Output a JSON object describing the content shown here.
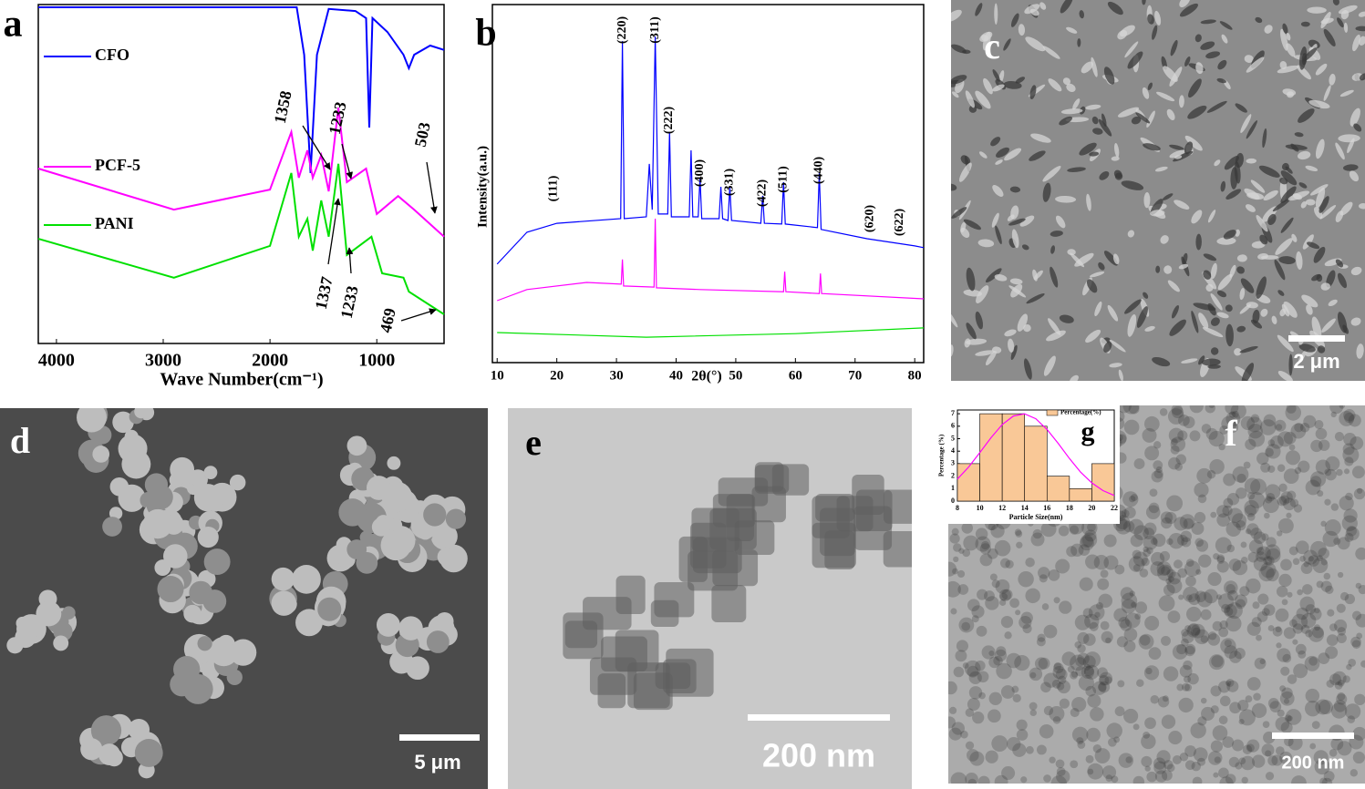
{
  "chart_data": [
    {
      "type": "line",
      "panel": "a",
      "xlabel": "Wave Number(cm⁻¹)",
      "xlim": [
        4170,
        370
      ],
      "xticks": [
        4000,
        3000,
        2000,
        1000
      ],
      "ylim": [
        0,
        100
      ],
      "series": [
        {
          "name": "CFO",
          "color": "#0000ff",
          "x": [
            4170,
            1750,
            1680,
            1620,
            1560,
            1450,
            1200,
            1100,
            1070,
            1040,
            900,
            750,
            700,
            650,
            500,
            370
          ],
          "values": [
            99.2,
            99.2,
            85.2,
            50.3,
            85.2,
            98.7,
            98.1,
            96.0,
            63.7,
            96.0,
            91.9,
            85.2,
            81.2,
            85.2,
            87.9,
            86.6
          ]
        },
        {
          "name": "PCF-5",
          "color": "#ff00ff",
          "x": [
            4170,
            2900,
            2000,
            1800,
            1730,
            1650,
            1600,
            1520,
            1450,
            1360,
            1280,
            1100,
            1000,
            800,
            650,
            370
          ],
          "values": [
            51.6,
            39.5,
            45.4,
            62.4,
            48.9,
            57.0,
            48.9,
            55.6,
            44.9,
            69.6,
            47.6,
            51.6,
            38.2,
            43.5,
            39.5,
            31.5
          ]
        },
        {
          "name": "PANI",
          "color": "#00e000",
          "x": [
            4170,
            2900,
            2000,
            1800,
            1730,
            1650,
            1600,
            1520,
            1450,
            1360,
            1280,
            1050,
            950,
            750,
            700,
            370
          ],
          "values": [
            30.9,
            19.4,
            28.8,
            50.3,
            31.5,
            36.8,
            27.4,
            42.2,
            31.5,
            53.0,
            26.1,
            31.5,
            20.7,
            19.4,
            15.3,
            8.6
          ]
        }
      ],
      "annotations": [
        "1358",
        "1233",
        "1337",
        "1233",
        "503",
        "469"
      ]
    },
    {
      "type": "line",
      "panel": "b",
      "xlabel": "2θ(°)",
      "ylabel": "Intensity(a.u.)",
      "xlim": [
        9.2,
        81.5
      ],
      "xticks": [
        10,
        20,
        30,
        40,
        50,
        60,
        70,
        80
      ],
      "ylim": [
        0,
        100
      ],
      "series": [
        {
          "color": "#0000ff",
          "x": [
            10,
            15,
            20,
            30.7,
            31,
            31.3,
            35,
            35.5,
            36,
            36.5,
            37,
            38.6,
            38.9,
            39.2,
            42.2,
            42.5,
            42.8,
            43.7,
            44,
            44.3,
            47.2,
            47.5,
            47.8,
            48.7,
            49,
            49.3,
            54.2,
            54.5,
            54.8,
            57.7,
            58,
            58.3,
            63.7,
            64,
            64.3,
            72,
            80,
            81.5
          ],
          "values": [
            27.5,
            36.4,
            38.9,
            40.2,
            89.8,
            40.2,
            40.7,
            55.5,
            42.7,
            91.1,
            41.5,
            41.5,
            64.4,
            40.7,
            40.7,
            59.3,
            40.7,
            40.7,
            51.7,
            40.2,
            40.2,
            49.1,
            40.2,
            39.7,
            49.1,
            39.7,
            38.9,
            46.6,
            38.9,
            38.7,
            50.4,
            38.7,
            37.7,
            52.9,
            37.2,
            34.6,
            32.6,
            32.1
          ]
        },
        {
          "color": "#ff00ff",
          "x": [
            10,
            15,
            25,
            30.8,
            31,
            31.2,
            36.3,
            36.5,
            36.7,
            44,
            58,
            58.2,
            58.4,
            64,
            64.2,
            64.4,
            81.5
          ],
          "values": [
            17.3,
            20.4,
            22.4,
            21.9,
            28.8,
            21.4,
            21.1,
            40.2,
            20.9,
            20.4,
            19.8,
            25.4,
            19.8,
            19.3,
            24.9,
            19.3,
            17.8
          ]
        },
        {
          "color": "#00e000",
          "x": [
            10,
            35,
            60,
            81.5
          ],
          "values": [
            8.4,
            7.1,
            8.1,
            9.7
          ]
        }
      ],
      "annotations": [
        {
          "x": 19.5,
          "text": "(111)"
        },
        {
          "x": 31,
          "text": "(220)"
        },
        {
          "x": 36.5,
          "text": "(311)"
        },
        {
          "x": 38.8,
          "text": "(222)"
        },
        {
          "x": 44,
          "text": "(400)"
        },
        {
          "x": 49,
          "text": "(331)"
        },
        {
          "x": 54.5,
          "text": "(422)"
        },
        {
          "x": 58,
          "text": "(511)"
        },
        {
          "x": 64,
          "text": "(440)"
        },
        {
          "x": 72.5,
          "text": "(620)"
        },
        {
          "x": 77.5,
          "text": "(622)"
        }
      ]
    },
    {
      "type": "histogram",
      "panel": "g",
      "xlabel": "Particle Size(nm)",
      "ylabel": "Percentage (%)",
      "bins": [
        8,
        10,
        12,
        14,
        16,
        18,
        20,
        22
      ],
      "series": [
        {
          "name": "Percentage(%)",
          "color": "#f9c897",
          "values": [
            3,
            7,
            7,
            6,
            2,
            1,
            3
          ]
        }
      ],
      "fit": {
        "color": "#ff00ff",
        "x": [
          8,
          9,
          10,
          11,
          12,
          13,
          14,
          15,
          16,
          17,
          18,
          19,
          20,
          21,
          22
        ],
        "values": [
          1.77,
          2.73,
          3.88,
          5.08,
          6.13,
          6.82,
          6.99,
          6.6,
          5.74,
          4.61,
          3.41,
          2.32,
          1.46,
          0.84,
          0.45
        ]
      },
      "xlim": [
        8,
        22
      ],
      "xticks": [
        8,
        10,
        12,
        14,
        16,
        18,
        20,
        22
      ],
      "ylim": [
        0,
        7.3
      ],
      "yticks": [
        0,
        1,
        2,
        3,
        4,
        5,
        6,
        7
      ]
    }
  ],
  "images": [
    {
      "panel": "c",
      "scale_bar": "2 μm"
    },
    {
      "panel": "d",
      "scale_bar": "5 μm"
    },
    {
      "panel": "e",
      "scale_bar": "200 nm"
    },
    {
      "panel": "f",
      "scale_bar": "200 nm"
    }
  ]
}
